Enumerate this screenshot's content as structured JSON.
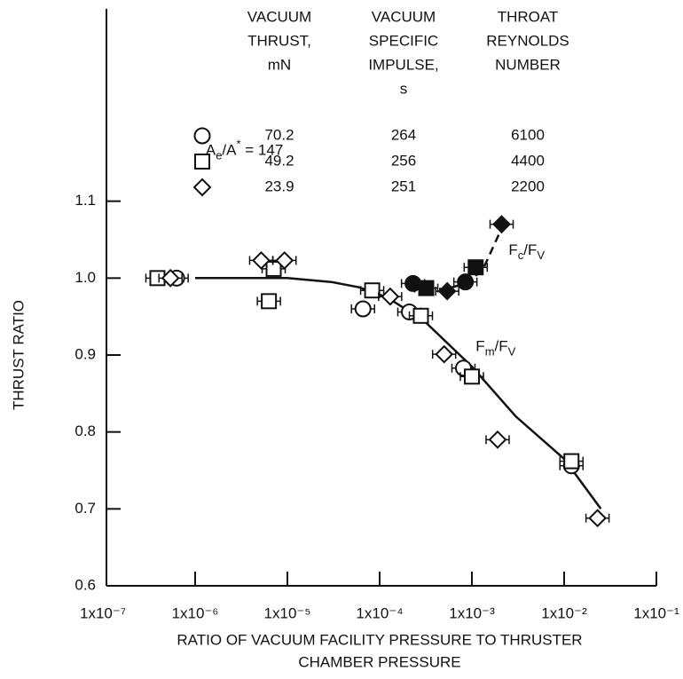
{
  "chart_data": {
    "type": "scatter",
    "x_label": [
      "RATIO OF VACUUM FACILITY PRESSURE TO THRUSTER",
      "CHAMBER PRESSURE"
    ],
    "y_label": "THRUST RATIO",
    "x_log": true,
    "xlim": [
      1e-07,
      0.1
    ],
    "ylim": [
      0.6,
      1.35
    ],
    "xticks": [
      {
        "value": 1e-07,
        "label": "1x10⁻⁷"
      },
      {
        "value": 1e-06,
        "label": "1x10⁻⁶"
      },
      {
        "value": 1e-05,
        "label": "1x10⁻⁵"
      },
      {
        "value": 0.0001,
        "label": "1x10⁻⁴"
      },
      {
        "value": 0.001,
        "label": "1x10⁻³"
      },
      {
        "value": 0.01,
        "label": "1x10⁻²"
      },
      {
        "value": 0.1,
        "label": "1x10⁻¹"
      }
    ],
    "yticks": [
      {
        "value": 0.6,
        "label": "0.6"
      },
      0.7,
      0.8,
      0.9,
      {
        "value": 1.0,
        "label": "1.0"
      },
      1.1
    ],
    "legend_table": {
      "headers": [
        [
          "VACUUM",
          "THRUST,",
          "mN"
        ],
        [
          "VACUUM",
          "SPECIFIC",
          "IMPULSE,",
          "s"
        ],
        [
          "THROAT",
          "REYNOLDS",
          "NUMBER"
        ]
      ],
      "rows": [
        {
          "marker": "circle",
          "cells": [
            "70.2",
            "264",
            "6100"
          ]
        },
        {
          "marker": "square",
          "cells": [
            "49.2",
            "256",
            "4400"
          ]
        },
        {
          "marker": "diamond",
          "cells": [
            "23.9",
            "251",
            "2200"
          ]
        }
      ]
    },
    "series": [
      {
        "marker": "circle",
        "filled": false,
        "color": "#111111",
        "x": [
          6.3e-07,
          6.6e-05,
          0.00021,
          0.00081,
          0.012
        ],
        "values": [
          1.0,
          0.96,
          0.956,
          0.883,
          0.756
        ]
      },
      {
        "marker": "square",
        "filled": false,
        "color": "#111111",
        "x": [
          3.9e-07,
          7.1e-06,
          6.3e-06,
          8.3e-05,
          0.00028,
          0.001,
          0.012
        ],
        "values": [
          1.0,
          1.012,
          0.97,
          0.984,
          0.951,
          0.872,
          0.762
        ]
      },
      {
        "marker": "diamond",
        "filled": false,
        "color": "#111111",
        "x": [
          5.4e-07,
          5.2e-06,
          9.3e-06,
          0.00013,
          0.0005,
          0.0019,
          0.023
        ],
        "values": [
          1.0,
          1.023,
          1.023,
          0.976,
          0.901,
          0.79,
          0.688
        ]
      },
      {
        "marker": "circle",
        "filled": true,
        "color": "#111111",
        "x": [
          0.00023,
          0.00085
        ],
        "values": [
          0.993,
          0.995
        ]
      },
      {
        "marker": "square",
        "filled": true,
        "color": "#111111",
        "x": [
          0.00032,
          0.0011
        ],
        "values": [
          0.987,
          1.014
        ]
      },
      {
        "marker": "diamond",
        "filled": true,
        "color": "#111111",
        "x": [
          0.00054,
          0.0021
        ],
        "values": [
          0.983,
          1.07
        ]
      }
    ],
    "curves": [
      {
        "dashed": false,
        "x": [
          1e-06,
          1e-05,
          3e-05,
          6e-05,
          0.00012,
          0.0003,
          0.001,
          0.003,
          0.01,
          0.025
        ],
        "values": [
          1.0,
          1.0,
          0.995,
          0.988,
          0.975,
          0.945,
          0.885,
          0.82,
          0.765,
          0.7
        ]
      },
      {
        "dashed": true,
        "x": [
          0.00023,
          0.0005,
          0.00085,
          0.0013,
          0.0022
        ],
        "values": [
          0.993,
          0.985,
          0.993,
          1.01,
          1.07
        ]
      }
    ],
    "annotations": [
      {
        "x": 1.3e-06,
        "y": 1.165,
        "segments": [
          {
            "t": "A",
            "pos": "base"
          },
          {
            "t": "e",
            "pos": "sub"
          },
          {
            "t": "/A",
            "pos": "base"
          },
          {
            "t": "*",
            "pos": "sup"
          },
          {
            "t": " = 147",
            "pos": "base"
          }
        ]
      },
      {
        "x": 0.0025,
        "y": 1.035,
        "segments": [
          {
            "t": "F",
            "pos": "base"
          },
          {
            "t": "c",
            "pos": "sub"
          },
          {
            "t": "/F",
            "pos": "base"
          },
          {
            "t": "V",
            "pos": "sub"
          }
        ]
      },
      {
        "x": 0.0011,
        "y": 0.91,
        "segments": [
          {
            "t": "F",
            "pos": "base"
          },
          {
            "t": "m",
            "pos": "sub"
          },
          {
            "t": "/F",
            "pos": "base"
          },
          {
            "t": "V",
            "pos": "sub"
          }
        ]
      }
    ]
  }
}
